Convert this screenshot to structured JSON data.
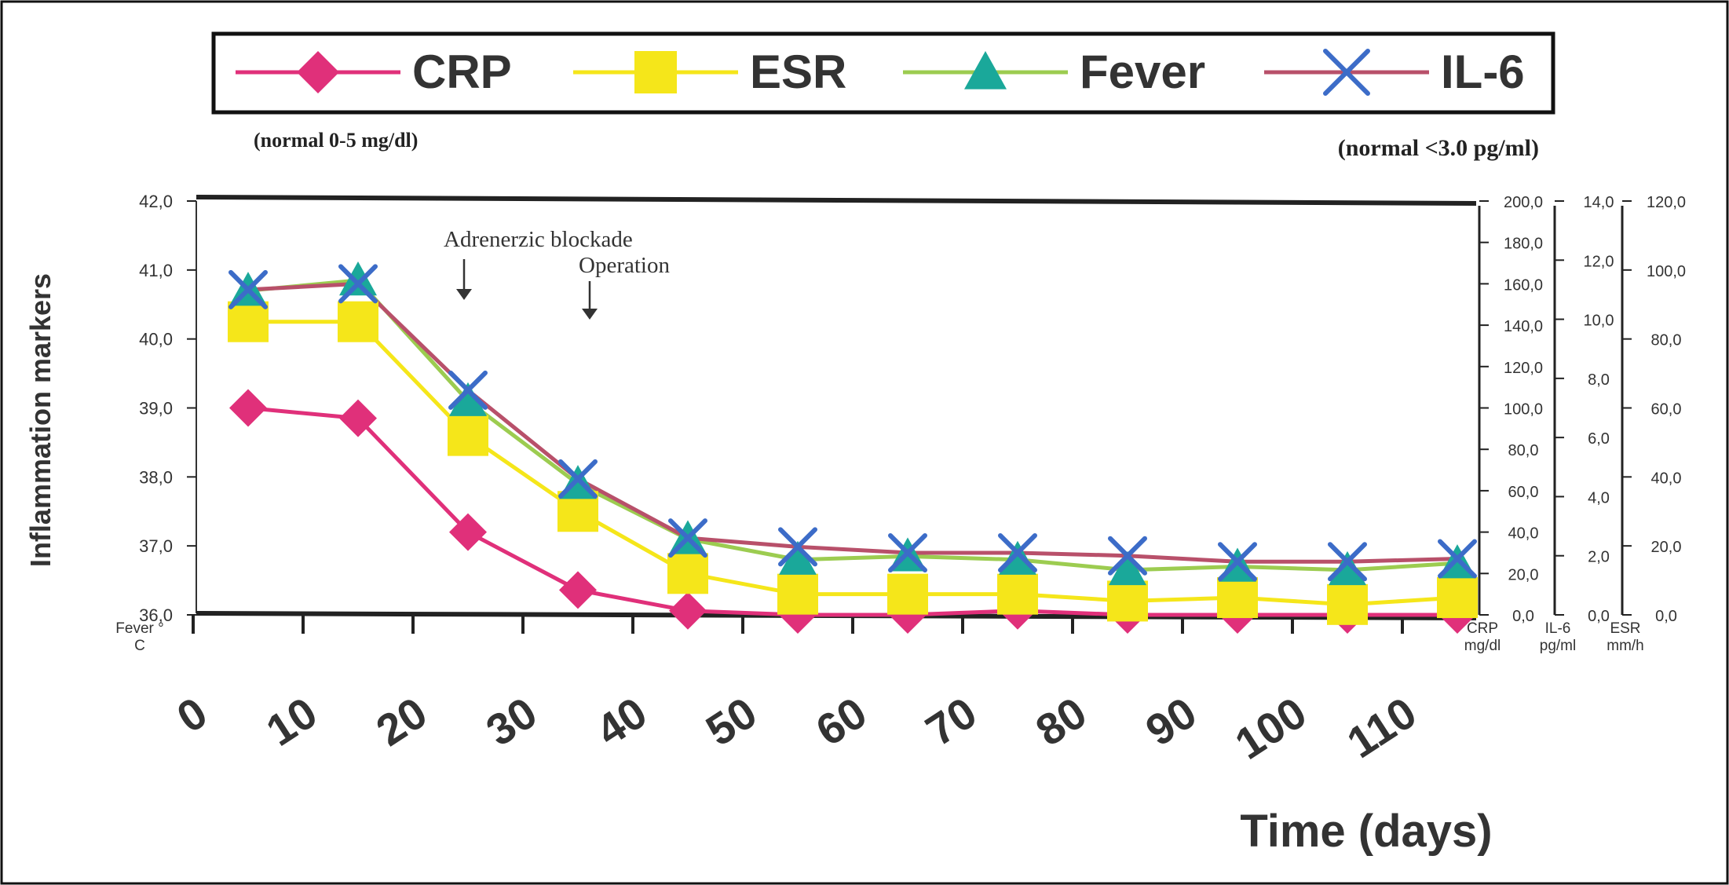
{
  "chart_data": {
    "type": "line",
    "title": "",
    "xlabel": "Time (days)",
    "ylabel": "Inflammation markers",
    "x_ticks": [
      "0",
      "10",
      "20",
      "30",
      "40",
      "50",
      "60",
      "70",
      "80",
      "90",
      "100",
      "110"
    ],
    "x": [
      5,
      15,
      25,
      35,
      45,
      55,
      65,
      75,
      85,
      95,
      105,
      115
    ],
    "xlim": [
      0,
      115
    ],
    "legend_position": "top",
    "grid": false,
    "legend": [
      {
        "name": "CRP",
        "color": "#e0307a",
        "marker": "diamond"
      },
      {
        "name": "ESR",
        "color": "#f5e61a",
        "marker": "square"
      },
      {
        "name": "Fever",
        "color": "#1aa89a",
        "line_color": "#9ccc50",
        "marker": "triangle"
      },
      {
        "name": "IL-6",
        "color": "#3c6cc8",
        "line_color": "#b8506a",
        "marker": "x"
      }
    ],
    "notes": {
      "left": "(normal 0-5 mg/dl)",
      "right": "(normal <3.0 pg/ml)"
    },
    "annotations": [
      {
        "text": "Adrenerzic blockade",
        "x": 25
      },
      {
        "text": "Operation",
        "x": 36
      }
    ],
    "axes": [
      {
        "id": "fever",
        "label_lines": [
          "Fever °",
          "C"
        ],
        "ylim": [
          36,
          42
        ],
        "ticks": [
          "36,0",
          "37,0",
          "38,0",
          "39,0",
          "40,0",
          "41,0",
          "42,0"
        ]
      },
      {
        "id": "crp",
        "label_lines": [
          "CRP",
          "mg/dl"
        ],
        "ylim": [
          0,
          200
        ],
        "ticks": [
          "0,0",
          "20,0",
          "40,0",
          "60,0",
          "80,0",
          "100,0",
          "120,0",
          "140,0",
          "160,0",
          "180,0",
          "200,0"
        ]
      },
      {
        "id": "il6",
        "label_lines": [
          "IL-6",
          "pg/ml"
        ],
        "ylim": [
          0,
          14
        ],
        "ticks": [
          "0,0",
          "2,0",
          "4,0",
          "6,0",
          "8,0",
          "10,0",
          "12,0",
          "14,0"
        ]
      },
      {
        "id": "esr",
        "label_lines": [
          "ESR",
          "mm/h"
        ],
        "ylim": [
          0,
          120
        ],
        "ticks": [
          "0,0",
          "20,0",
          "40,0",
          "60,0",
          "80,0",
          "100,0",
          "120,0"
        ]
      }
    ],
    "series": [
      {
        "name": "CRP",
        "axis": "crp",
        "marker": "diamond",
        "line_color": "#e0307a",
        "marker_color": "#e0307a",
        "values": [
          100,
          95,
          40,
          12,
          2,
          0,
          0,
          2,
          0,
          0,
          0,
          0
        ]
      },
      {
        "name": "ESR",
        "axis": "esr",
        "marker": "square",
        "line_color": "#f5e61a",
        "marker_color": "#f5e61a",
        "values": [
          85,
          85,
          52,
          30,
          12,
          6,
          6,
          6,
          4,
          5,
          3,
          5
        ]
      },
      {
        "name": "Fever",
        "axis": "fever",
        "marker": "triangle",
        "line_color": "#9ccc50",
        "marker_color": "#1aa89a",
        "values": [
          40.7,
          40.85,
          39.1,
          37.9,
          37.1,
          36.8,
          36.85,
          36.8,
          36.65,
          36.7,
          36.65,
          36.75
        ]
      },
      {
        "name": "IL-6",
        "axis": "il6",
        "marker": "x",
        "line_color": "#b8506a",
        "marker_color": "#3c6cc8",
        "values": [
          11.0,
          11.2,
          7.6,
          4.6,
          2.6,
          2.3,
          2.1,
          2.1,
          2.0,
          1.8,
          1.8,
          1.9
        ]
      }
    ]
  }
}
